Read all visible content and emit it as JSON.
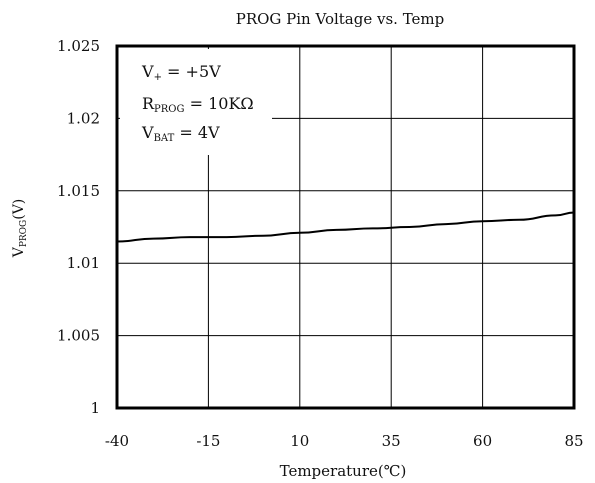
{
  "chart_data": {
    "type": "line",
    "title": "PROG Pin Voltage vs. Temp",
    "xlabel": "Temperature(℃)",
    "ylabel": {
      "main": "V",
      "sub": "PROG",
      "unit": "(V)"
    },
    "x_ticks": [
      "-40",
      "-15",
      "10",
      "35",
      "60",
      "85"
    ],
    "y_ticks": [
      "1",
      "1.005",
      "1.01",
      "1.015",
      "1.02",
      "1.025"
    ],
    "xlim": [
      -40,
      85
    ],
    "ylim": [
      1.0,
      1.025
    ],
    "grid": true,
    "annotations": [
      {
        "main": "V",
        "sub": "+",
        "rest": " = +5V"
      },
      {
        "main": "R",
        "sub": "PROG",
        "rest": " = 10KΩ"
      },
      {
        "main": "V",
        "sub": "BAT",
        "rest": " = 4V"
      }
    ],
    "series": [
      {
        "x": [
          -40,
          -30,
          -20,
          -10,
          0,
          10,
          20,
          30,
          40,
          50,
          60,
          70,
          80,
          85
        ],
        "y": [
          1.0115,
          1.0117,
          1.0118,
          1.0118,
          1.0119,
          1.0121,
          1.0123,
          1.0124,
          1.0125,
          1.0127,
          1.0129,
          1.013,
          1.0133,
          1.0135
        ]
      }
    ]
  }
}
